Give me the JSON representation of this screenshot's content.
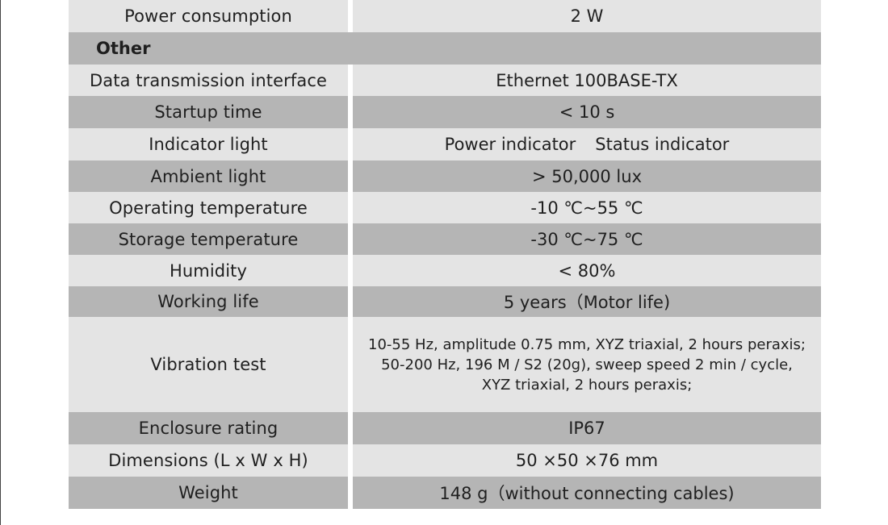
{
  "table": {
    "power_consumption": {
      "label": "Power consumption",
      "value": "2 W"
    },
    "section_title": "Other",
    "data_transmission": {
      "label": "Data transmission interface",
      "value": "Ethernet 100BASE-TX"
    },
    "startup_time": {
      "label": "Startup time",
      "value": "< 10 s"
    },
    "indicator_light": {
      "label": "Indicator light",
      "value_1": "Power indicator",
      "value_2": "Status indicator"
    },
    "ambient_light": {
      "label": "Ambient light",
      "value": "> 50,000 lux"
    },
    "operating_temperature": {
      "label": "Operating temperature",
      "value": "-10 ℃~55 ℃"
    },
    "storage_temperature": {
      "label": "Storage temperature",
      "value": "-30 ℃~75 ℃"
    },
    "humidity": {
      "label": "Humidity",
      "value": "< 80%"
    },
    "working_life": {
      "label": "Working life",
      "value": "5 years（Motor life)"
    },
    "vibration_test": {
      "label": "Vibration test",
      "line_1": "10-55 Hz, amplitude 0.75 mm, XYZ triaxial, 2 hours peraxis;",
      "line_2": "50-200 Hz, 196 M / S2 (20g), sweep speed 2 min / cycle,",
      "line_3": "XYZ triaxial, 2 hours peraxis;"
    },
    "enclosure_rating": {
      "label": "Enclosure rating",
      "value": "IP67"
    },
    "dimensions": {
      "label": "Dimensions (L x W x H)",
      "value": "50 ×50 ×76 mm"
    },
    "weight": {
      "label": "Weight",
      "value": "148 g（without connecting cables)"
    }
  },
  "colors": {
    "light_row": "#e4e4e4",
    "dark_row": "#b5b5b5",
    "text": "#1f1f1f"
  }
}
